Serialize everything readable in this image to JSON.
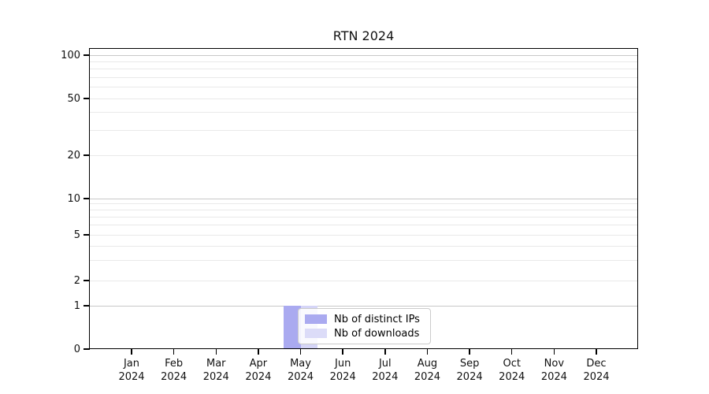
{
  "title": "RTN 2024",
  "chart_data": {
    "type": "bar",
    "title": "RTN 2024",
    "categories": [
      "Jan 2024",
      "Feb 2024",
      "Mar 2024",
      "Apr 2024",
      "May 2024",
      "Jun 2024",
      "Jul 2024",
      "Aug 2024",
      "Sep 2024",
      "Oct 2024",
      "Nov 2024",
      "Dec 2024"
    ],
    "x_ticks": [
      {
        "month": "Jan",
        "year": "2024"
      },
      {
        "month": "Feb",
        "year": "2024"
      },
      {
        "month": "Mar",
        "year": "2024"
      },
      {
        "month": "Apr",
        "year": "2024"
      },
      {
        "month": "May",
        "year": "2024"
      },
      {
        "month": "Jun",
        "year": "2024"
      },
      {
        "month": "Jul",
        "year": "2024"
      },
      {
        "month": "Aug",
        "year": "2024"
      },
      {
        "month": "Sep",
        "year": "2024"
      },
      {
        "month": "Oct",
        "year": "2024"
      },
      {
        "month": "Nov",
        "year": "2024"
      },
      {
        "month": "Dec",
        "year": "2024"
      }
    ],
    "series": [
      {
        "name": "Nb of distinct IPs",
        "color": "#aaaaf0",
        "values": [
          0,
          0,
          0,
          0,
          1,
          0,
          0,
          0,
          0,
          0,
          0,
          0
        ]
      },
      {
        "name": "Nb of downloads",
        "color": "#d5d5f7",
        "values": [
          0,
          0,
          0,
          0,
          1,
          0,
          0,
          0,
          0,
          0,
          0,
          0
        ]
      }
    ],
    "xlabel": "",
    "ylabel": "",
    "yaxis": {
      "scale": "symlog",
      "ticks": [
        0,
        1,
        2,
        5,
        10,
        20,
        50,
        100
      ],
      "tick_labels": [
        "0",
        "1",
        "2",
        "5",
        "10",
        "20",
        "50",
        "100"
      ],
      "major_grid_values": [
        1,
        10,
        100
      ],
      "minor_grid_values": [
        2,
        3,
        4,
        5,
        6,
        7,
        8,
        9,
        20,
        30,
        40,
        50,
        60,
        70,
        80,
        90
      ],
      "range": [
        0,
        110
      ]
    },
    "grid": true,
    "legend_position": "inside lower-center"
  },
  "legend": {
    "items": [
      {
        "label": "Nb of distinct IPs",
        "swatch_color": "#aaaaf0"
      },
      {
        "label": "Nb of downloads",
        "swatch_color": "#dcdcf8"
      }
    ]
  },
  "colors": {
    "background": "#ffffff",
    "spine": "#000000",
    "grid_major": "#c8c8c8",
    "grid_minor": "#e9e9e9",
    "bar_distinct_ips": "#aaaaf0",
    "bar_downloads": "#d5d5f7"
  }
}
